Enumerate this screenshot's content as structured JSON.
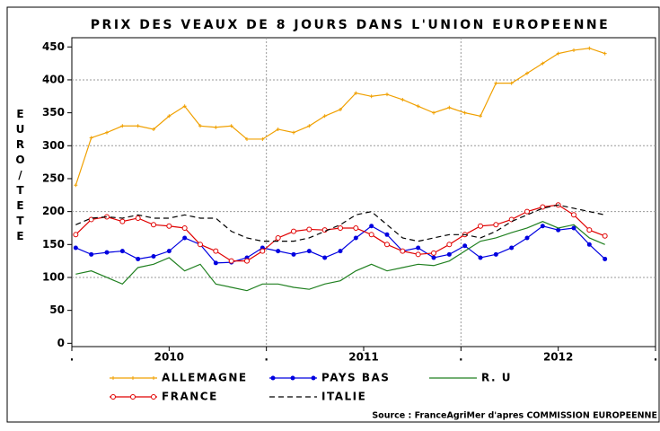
{
  "chart_data": {
    "type": "line",
    "title": "PRIX DES VEAUX DE 8 JOURS DANS L'UNION EUROPEENNE",
    "y_label": "EURO/TETE",
    "source": "Source : FranceAgriMer d'apres COMMISSION EUROPEENNE",
    "x": [
      2009.52,
      2009.6,
      2009.68,
      2009.76,
      2009.84,
      2009.92,
      2010.0,
      2010.08,
      2010.16,
      2010.24,
      2010.32,
      2010.4,
      2010.48,
      2010.56,
      2010.64,
      2010.72,
      2010.8,
      2010.88,
      2010.96,
      2011.04,
      2011.12,
      2011.2,
      2011.28,
      2011.36,
      2011.44,
      2011.52,
      2011.6,
      2011.68,
      2011.76,
      2011.84,
      2011.92,
      2012.0,
      2012.08,
      2012.16,
      2012.24
    ],
    "xlim": [
      2009.5,
      2012.5
    ],
    "xticks": [
      {
        "value": 2009.5,
        "label": "."
      },
      2010,
      {
        "value": 2010.5,
        "label": "."
      },
      2011,
      {
        "value": 2011.5,
        "label": "."
      },
      2012,
      {
        "value": 2012.5,
        "label": "."
      }
    ],
    "xgrid": [
      2010.5,
      2011.5
    ],
    "ylim": [
      -5,
      464
    ],
    "yticks": [
      0,
      50,
      100,
      150,
      200,
      250,
      300,
      350,
      400,
      450
    ],
    "ygrid": [
      100,
      200,
      300,
      400
    ],
    "series": [
      {
        "name": "ALLEMAGNE",
        "color": "#f0a000",
        "marker": "plus",
        "values": [
          240,
          312,
          320,
          330,
          330,
          325,
          345,
          360,
          330,
          328,
          330,
          310,
          310,
          325,
          320,
          330,
          345,
          355,
          380,
          375,
          378,
          370,
          360,
          350,
          358,
          350,
          345,
          395,
          395,
          410,
          425,
          440,
          445,
          448,
          440
        ]
      },
      {
        "name": "PAYS BAS",
        "color": "#0000e0",
        "marker": "dot",
        "values": [
          145,
          135,
          138,
          140,
          128,
          132,
          140,
          160,
          150,
          122,
          123,
          130,
          145,
          140,
          135,
          140,
          130,
          140,
          160,
          178,
          165,
          140,
          145,
          130,
          135,
          148,
          130,
          135,
          145,
          160,
          178,
          172,
          175,
          150,
          128
        ]
      },
      {
        "name": "R. U",
        "color": "#208020",
        "marker": "none",
        "values": [
          105,
          110,
          100,
          90,
          115,
          120,
          130,
          110,
          120,
          90,
          85,
          80,
          90,
          90,
          85,
          82,
          90,
          95,
          110,
          120,
          110,
          115,
          120,
          118,
          125,
          140,
          155,
          160,
          168,
          175,
          185,
          175,
          180,
          160,
          150
        ]
      },
      {
        "name": "FRANCE",
        "color": "#e00000",
        "marker": "circle",
        "values": [
          165,
          188,
          192,
          185,
          190,
          180,
          178,
          175,
          150,
          140,
          125,
          125,
          140,
          160,
          170,
          173,
          172,
          175,
          175,
          165,
          150,
          140,
          135,
          137,
          150,
          165,
          178,
          180,
          188,
          200,
          207,
          210,
          195,
          172,
          163
        ]
      },
      {
        "name": "ITALIE",
        "color": "#000000",
        "marker": "none",
        "dash": true,
        "values": [
          180,
          190,
          192,
          190,
          195,
          190,
          190,
          195,
          190,
          190,
          170,
          160,
          155,
          155,
          155,
          160,
          170,
          180,
          195,
          200,
          180,
          160,
          155,
          160,
          165,
          165,
          160,
          170,
          185,
          195,
          205,
          210,
          205,
          200,
          195
        ]
      }
    ]
  }
}
